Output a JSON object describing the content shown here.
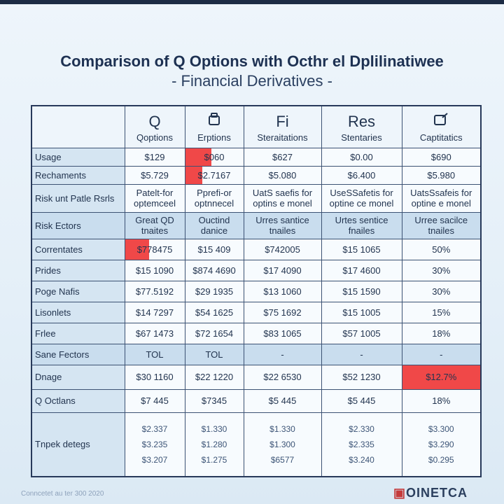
{
  "title": {
    "line1": "Comparison of Q Options with Octhr el Dplilinatiwee",
    "line2": "- Financial Derivatives -"
  },
  "table": {
    "columns": [
      {
        "symbol": "Q",
        "label": "Qoptions"
      },
      {
        "label": "Erptions"
      },
      {
        "symbol": "Fi",
        "label": "Steraitations"
      },
      {
        "symbol": "Res",
        "label": "Stentaries"
      },
      {
        "label": "Captitatics"
      }
    ],
    "rows": [
      {
        "label": "Usage",
        "cells": [
          "$129",
          "$060",
          "$627",
          "$0.00",
          "$690"
        ]
      },
      {
        "label": "Rechaments",
        "cells": [
          "$5.729",
          "$2.7167",
          "$5.080",
          "$6.400",
          "$5.980"
        ]
      },
      {
        "label": "Risk unt Patle Rsrls",
        "cells": [
          "Patelt-for optemceel",
          "Pprefi-or optnnecel",
          "UatS saefis for optins e monel",
          "UseSSafetis for optine ce monel",
          "UatsSsafeis for optine e monel"
        ]
      },
      {
        "label": "Risk Ectors",
        "cells": [
          "Great QD tnaites",
          "Ouctind danice",
          "Urres santice tnailes",
          "Urtes sentice fnailes",
          "Urree sacilce tnailes"
        ]
      },
      {
        "label": "Correntates",
        "cells": [
          "$778475",
          "$15 409",
          "$742005",
          "$15 1065",
          "50%"
        ]
      },
      {
        "label": "Prides",
        "cells": [
          "$15 1090",
          "$874 4690",
          "$17 4090",
          "$17 4600",
          "30%"
        ]
      },
      {
        "label": "Poge Nafis",
        "cells": [
          "$77.5192",
          "$29 1935",
          "$13 1060",
          "$15 1590",
          "30%"
        ]
      },
      {
        "label": "Lisonlets",
        "cells": [
          "$14 7297",
          "$54 1625",
          "$75 1692",
          "$15 1005",
          "15%"
        ]
      },
      {
        "label": "Frlee",
        "cells": [
          "$67 1473",
          "$72 1654",
          "$83 1065",
          "$57 1005",
          "18%"
        ]
      },
      {
        "label": "Sane Fectors",
        "cells": [
          "TOL",
          "TOL",
          "-",
          "-",
          "-"
        ]
      },
      {
        "label": "Dnage",
        "cells": [
          "$30 1160",
          "$22 1220",
          "$22 6530",
          "$52 1230",
          "$12.7%"
        ]
      },
      {
        "label": "Q Octlans",
        "cells": [
          "$7 445",
          "$7345",
          "$5 445",
          "$5 445",
          "18%"
        ]
      },
      {
        "label": "Tnpek detegs",
        "cells": [
          [
            "$2.337",
            "$3.235",
            "$3.207"
          ],
          [
            "$1.330",
            "$1.280",
            "$1.275"
          ],
          [
            "$1.330",
            "$1.300",
            "$6577"
          ],
          [
            "$2.330",
            "$2.335",
            "$3.240"
          ],
          [
            "$3.300",
            "$3.290",
            "$0.295"
          ]
        ]
      }
    ]
  },
  "footer": {
    "note": "Conncetet au ter 300 2020",
    "logo": "OINETCA"
  }
}
